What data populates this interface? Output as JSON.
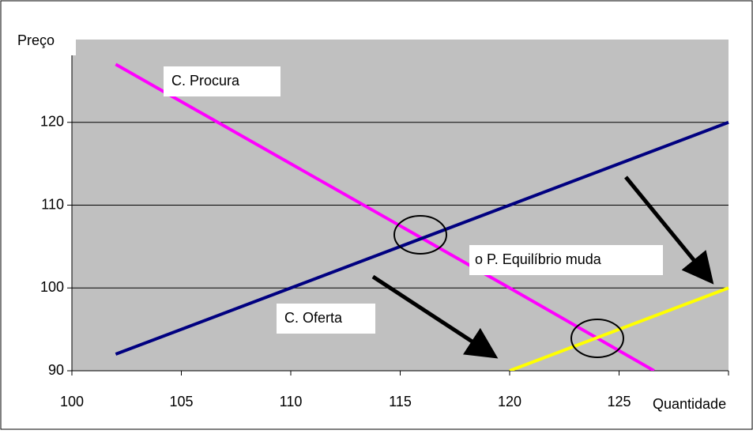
{
  "chart_data": {
    "type": "line",
    "xlabel": "Quantidade",
    "ylabel": "Preço",
    "series": [
      {
        "name": "C. Procura",
        "color": "#ff00ff",
        "x": [
          102,
          106,
          110,
          115,
          120,
          126.6
        ],
        "values": [
          127,
          121,
          115,
          107.5,
          100,
          90
        ]
      },
      {
        "name": "C. Oferta",
        "color": "#000080",
        "x": [
          102,
          110,
          115,
          120,
          125,
          130
        ],
        "values": [
          92,
          100,
          105,
          110,
          115,
          120
        ]
      },
      {
        "color": "#ffff00",
        "x": [
          120,
          130
        ],
        "values": [
          90,
          100
        ]
      }
    ],
    "annotations": [
      "o P. Equilíbrio muda"
    ],
    "xlim": [
      100,
      130
    ],
    "xticks": [
      100,
      105,
      110,
      115,
      120,
      125
    ],
    "ylim": [
      90,
      130
    ],
    "yticks": [
      90,
      100,
      110,
      120
    ],
    "grid": true
  }
}
